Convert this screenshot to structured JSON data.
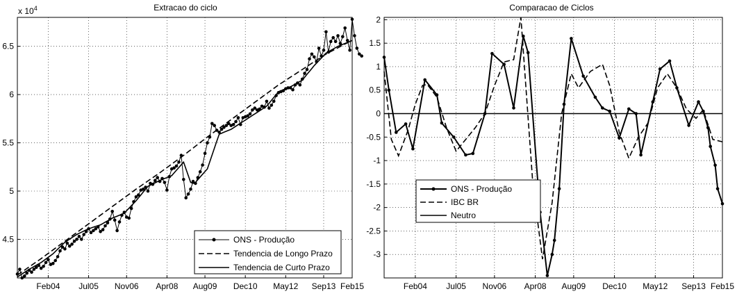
{
  "chart_data": [
    {
      "type": "line",
      "title": "Extracao do ciclo",
      "x_ticklabels": [
        "Feb04",
        "Jul05",
        "Nov06",
        "Apr08",
        "Aug09",
        "Dec10",
        "May12",
        "Sep13",
        "Feb15"
      ],
      "y_ticklabels": [
        "4.5",
        "5",
        "5.5",
        "6",
        "6.5"
      ],
      "y_exponent_label": "x 10",
      "y_exponent_power": "4",
      "ylim": [
        41000,
        68000
      ],
      "x_range_months": [
        0,
        141
      ],
      "legend_position": "bottom-right",
      "grid": true,
      "series": [
        {
          "name": "ONS - Produção",
          "style": "solid-with-dots",
          "values": [
            41400,
            41900,
            41000,
            41200,
            41500,
            41800,
            41600,
            41900,
            42100,
            42300,
            42000,
            42200,
            42600,
            42900,
            42400,
            42500,
            42800,
            43200,
            43800,
            44200,
            44000,
            44600,
            44300,
            44500,
            44800,
            45000,
            45300,
            45000,
            45500,
            45800,
            46100,
            45700,
            45900,
            46100,
            46300,
            45800,
            46000,
            46400,
            46700,
            47100,
            47900,
            47000,
            45900,
            46800,
            47500,
            47800,
            47300,
            47200,
            48200,
            48900,
            49400,
            49600,
            50100,
            50200,
            50400,
            50000,
            50800,
            50700,
            51100,
            51400,
            51000,
            51300,
            50900,
            50100,
            51500,
            52300,
            52400,
            52600,
            53000,
            53700,
            51200,
            49300,
            49700,
            50200,
            51000,
            50800,
            51400,
            52000,
            52700,
            53900,
            55000,
            55600,
            57000,
            56800,
            56300,
            56100,
            56400,
            56600,
            56800,
            57000,
            56800,
            56900,
            57200,
            57600,
            56900,
            57600,
            57700,
            57800,
            58000,
            58400,
            58600,
            58400,
            58500,
            58800,
            58700,
            59300,
            58600,
            58900,
            59300,
            59900,
            60200,
            60300,
            60400,
            60600,
            60700,
            60700,
            60500,
            61000,
            61200,
            61000,
            61600,
            62200,
            62600,
            63700,
            64200,
            63900,
            63400,
            64800,
            64000,
            64600,
            66500,
            64400,
            65500,
            65900,
            65500,
            66100,
            65300,
            66000,
            66900,
            65600,
            64600,
            67800,
            66100,
            64800,
            64200,
            64000
          ]
        },
        {
          "name": "Tendencia de Longo Prazo",
          "style": "dashed",
          "values": [
            41300,
            41470,
            41640,
            41810,
            41980,
            42150,
            42320,
            42490,
            42660,
            42830,
            43000,
            43180,
            43360,
            43540,
            43720,
            43900,
            44080,
            44260,
            44440,
            44620,
            44800,
            44980,
            45160,
            45340,
            45520,
            45700,
            45880,
            46060,
            46240,
            46420,
            46600,
            46780,
            46960,
            47140,
            47320,
            47500,
            47680,
            47860,
            48040,
            48220,
            48400,
            48580,
            48760,
            48940,
            49120,
            49300,
            49480,
            49660,
            49840,
            50020,
            50200,
            50370,
            50540,
            50710,
            50880,
            51050,
            51220,
            51390,
            51560,
            51730,
            51900,
            52080,
            52260,
            52440,
            52620,
            52800,
            52980,
            53160,
            53340,
            53520,
            53700,
            53890,
            54080,
            54270,
            54460,
            54650,
            54840,
            55030,
            55220,
            55410,
            55600,
            55780,
            55960,
            56140,
            56320,
            56500,
            56680,
            56860,
            57040,
            57220,
            57400,
            57580,
            57760,
            57940,
            58120,
            58300,
            58480,
            58660,
            58840,
            59020,
            59200,
            59380,
            59560,
            59740,
            59920,
            60100,
            60280,
            60460,
            60640,
            60820,
            61000,
            61160,
            61320,
            61480,
            61640,
            61800,
            61960,
            62120,
            62280,
            62440,
            62600,
            62760,
            62920,
            63080,
            63240,
            63400,
            63560,
            63720,
            63880,
            64040,
            64200,
            64330,
            64460,
            64590,
            64720,
            64850,
            64980,
            65110,
            65240,
            65370,
            65500,
            65610
          ]
        },
        {
          "name": "Tendencia de Curto Prazo",
          "style": "solid",
          "values": [
            41100,
            41260,
            41420,
            41580,
            41740,
            41900,
            42040,
            42180,
            42320,
            42460,
            42600,
            42780,
            42960,
            43140,
            43320,
            43500,
            43740,
            43980,
            44220,
            44460,
            44700,
            44860,
            45020,
            45180,
            45340,
            45500,
            45620,
            45740,
            45860,
            45980,
            46100,
            46180,
            46260,
            46340,
            46420,
            46500,
            46640,
            46780,
            46920,
            47060,
            47200,
            47300,
            47400,
            47500,
            47600,
            47700,
            47960,
            48220,
            48480,
            48740,
            49000,
            49300,
            49600,
            49900,
            50200,
            50500,
            50620,
            50740,
            50860,
            50980,
            51100,
            51200,
            51300,
            51400,
            51500,
            51600,
            51880,
            52160,
            52440,
            52720,
            53000,
            52300,
            51600,
            50900,
            50800,
            50900,
            51180,
            51460,
            51740,
            52020,
            52300,
            53020,
            53740,
            54460,
            55180,
            55900,
            56000,
            56100,
            56200,
            56300,
            56400,
            56560,
            56720,
            56880,
            57040,
            57200,
            57360,
            57520,
            57680,
            57840,
            58000,
            58160,
            58320,
            58480,
            58640,
            58800,
            59100,
            59400,
            59700,
            60000,
            60300,
            60400,
            60500,
            60600,
            60700,
            60800,
            60940,
            61080,
            61220,
            61360,
            61500,
            61800,
            62100,
            62400,
            62700,
            63000,
            63260,
            63520,
            63780,
            64040,
            64300,
            64440,
            64580,
            64720,
            64860,
            65000,
            65100,
            65200,
            65300,
            65400,
            65500,
            65600
          ]
        }
      ]
    },
    {
      "type": "line",
      "title": "Comparacao de Ciclos",
      "x_ticklabels": [
        "Feb04",
        "Jul05",
        "Nov06",
        "Apr08",
        "Aug09",
        "Dec10",
        "May12",
        "Sep13",
        "Feb15"
      ],
      "y_ticklabels": [
        "-3",
        "-2.5",
        "-2",
        "-1.5",
        "-1",
        "-0.5",
        "0",
        "0.5",
        "1",
        "1.5",
        "2"
      ],
      "ylim": [
        -3.5,
        2.05
      ],
      "x_range_months": [
        0,
        141
      ],
      "legend_position": "bottom-left",
      "grid": true,
      "series": [
        {
          "name": "ONS - Produção",
          "style": "solid-with-dots",
          "x": [
            0,
            2,
            5,
            9,
            12,
            17,
            22,
            24,
            29,
            34,
            37,
            42,
            45,
            50,
            54,
            58,
            60,
            65,
            68,
            70,
            71,
            73,
            75,
            78,
            83,
            88,
            91,
            94,
            98,
            102,
            105,
            107,
            112,
            115,
            119,
            122,
            127,
            131,
            133,
            135,
            136,
            138,
            139,
            141
          ],
          "values": [
            1.2,
            0.5,
            -0.4,
            -0.22,
            -0.75,
            0.72,
            0.4,
            -0.2,
            -0.5,
            -0.88,
            -0.85,
            0.0,
            1.28,
            1.05,
            0.12,
            1.65,
            1.3,
            -2.1,
            -3.45,
            -3.0,
            -2.7,
            -1.6,
            0.2,
            1.6,
            0.8,
            0.35,
            0.12,
            0.05,
            -0.52,
            0.1,
            0.0,
            -0.88,
            0.25,
            0.95,
            1.12,
            0.55,
            -0.25,
            0.25,
            0.05,
            -0.3,
            -0.7,
            -1.1,
            -1.6,
            -1.92
          ]
        },
        {
          "name": "IBC BR",
          "style": "dashed",
          "x": [
            0,
            3,
            6,
            10,
            13,
            16,
            18,
            22,
            26,
            30,
            34,
            38,
            42,
            46,
            50,
            54,
            57,
            62,
            66,
            70,
            74,
            78,
            81,
            86,
            91,
            94,
            98,
            102,
            106,
            110,
            114,
            118,
            122,
            126,
            130,
            133,
            137,
            141
          ],
          "values": [
            0.9,
            -0.55,
            -0.9,
            -0.35,
            0.2,
            0.6,
            0.62,
            0.35,
            -0.3,
            -0.8,
            -0.55,
            -0.3,
            0.0,
            0.6,
            1.1,
            1.15,
            2.05,
            -1.5,
            -3.1,
            -1.9,
            0.0,
            0.85,
            0.55,
            0.9,
            1.05,
            0.6,
            -0.4,
            -0.95,
            -0.5,
            -0.2,
            0.55,
            0.85,
            0.55,
            0.1,
            -0.1,
            0.08,
            -0.55,
            -0.6
          ]
        },
        {
          "name": "Neutro",
          "style": "solid",
          "x": [
            0,
            141
          ],
          "values": [
            0,
            0
          ]
        }
      ]
    }
  ]
}
